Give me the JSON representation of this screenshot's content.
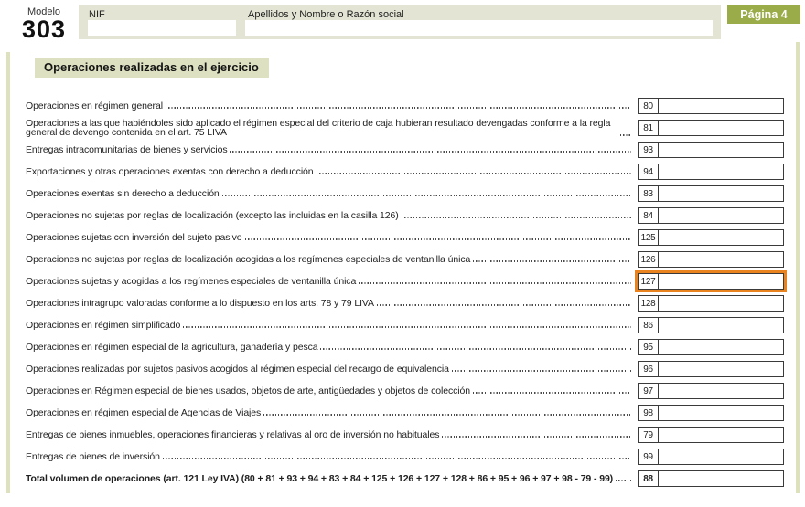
{
  "header": {
    "modelo_label": "Modelo",
    "modelo_number": "303",
    "nif_label": "NIF",
    "nif_value": "",
    "apellidos_label": "Apellidos y Nombre o Razón social",
    "apellidos_value": "",
    "page_badge": "Página 4"
  },
  "section": {
    "title": "Operaciones realizadas en el ejercicio"
  },
  "colors": {
    "header_band_bg": "#e3e4d3",
    "section_title_bg": "#dde0c1",
    "page_badge_bg": "#9aab4a",
    "side_strip": "#dde2bd",
    "box_border": "#3a3a3a",
    "highlight_orange": "#e8831f"
  },
  "rows": [
    {
      "label": "Operaciones en régimen general",
      "code": "80",
      "value": "",
      "highlighted": false,
      "bold": false
    },
    {
      "label": "Operaciones a las que habiéndoles sido aplicado el régimen especial del criterio de caja hubieran resultado devengadas conforme a la regla general de devengo contenida en el art. 75 LIVA",
      "code": "81",
      "value": "",
      "highlighted": false,
      "bold": false
    },
    {
      "label": "Entregas intracomunitarias de bienes y servicios",
      "code": "93",
      "value": "",
      "highlighted": false,
      "bold": false
    },
    {
      "label": "Exportaciones y otras operaciones exentas con derecho a deducción",
      "code": "94",
      "value": "",
      "highlighted": false,
      "bold": false
    },
    {
      "label": "Operaciones exentas sin derecho a deducción",
      "code": "83",
      "value": "",
      "highlighted": false,
      "bold": false
    },
    {
      "label": "Operaciones no sujetas por reglas de localización (excepto las incluidas en la casilla 126)",
      "code": "84",
      "value": "",
      "highlighted": false,
      "bold": false
    },
    {
      "label": "Operaciones sujetas con inversión del sujeto pasivo",
      "code": "125",
      "value": "",
      "highlighted": false,
      "bold": false
    },
    {
      "label": "Operaciones no sujetas por reglas de localización acogidas a los regímenes especiales de ventanilla única",
      "code": "126",
      "value": "",
      "highlighted": false,
      "bold": false
    },
    {
      "label": "Operaciones sujetas y acogidas a los regímenes especiales de ventanilla única",
      "code": "127",
      "value": "",
      "highlighted": true,
      "bold": false
    },
    {
      "label": "Operaciones intragrupo valoradas conforme a lo dispuesto en los arts. 78 y 79 LIVA",
      "code": "128",
      "value": "",
      "highlighted": false,
      "bold": false
    },
    {
      "label": "Operaciones en régimen simplificado",
      "code": "86",
      "value": "",
      "highlighted": false,
      "bold": false
    },
    {
      "label": "Operaciones en régimen especial de la agricultura, ganadería y pesca",
      "code": "95",
      "value": "",
      "highlighted": false,
      "bold": false
    },
    {
      "label": "Operaciones realizadas por sujetos pasivos acogidos al régimen especial del recargo de equivalencia",
      "code": "96",
      "value": "",
      "highlighted": false,
      "bold": false
    },
    {
      "label": "Operaciones en Régimen especial de bienes usados, objetos de arte, antigüedades y objetos de colección",
      "code": "97",
      "value": "",
      "highlighted": false,
      "bold": false
    },
    {
      "label": "Operaciones en régimen especial de Agencias de Viajes",
      "code": "98",
      "value": "",
      "highlighted": false,
      "bold": false
    },
    {
      "label": "Entregas de bienes inmuebles, operaciones financieras y relativas al oro de inversión no habituales",
      "code": "79",
      "value": "",
      "highlighted": false,
      "bold": false
    },
    {
      "label": "Entregas de bienes de inversión",
      "code": "99",
      "value": "",
      "highlighted": false,
      "bold": false
    },
    {
      "label": "Total volumen de operaciones (art. 121 Ley IVA) (80 + 81 + 93 + 94 + 83 + 84 + 125 + 126 + 127 + 128 + 86 + 95 + 96 + 97 + 98 - 79 - 99)",
      "code": "88",
      "value": "",
      "highlighted": false,
      "bold": true
    }
  ]
}
